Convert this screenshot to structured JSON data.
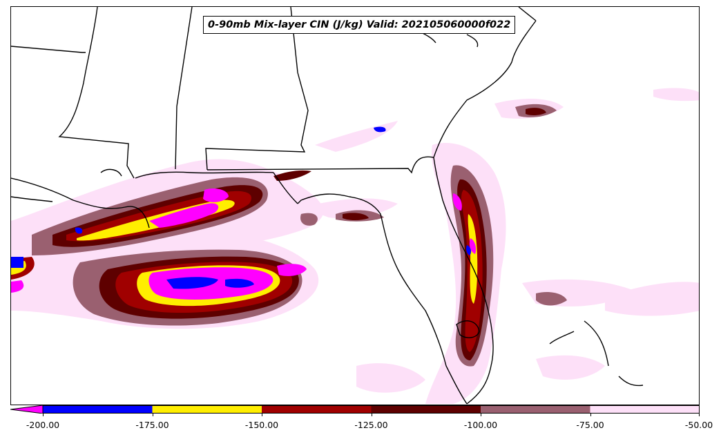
{
  "title": "0-90mb Mix-layer CIN (J/kg) Valid: 202105060000f022",
  "colorbar": {
    "ticks": [
      "-200.00",
      "-175.00",
      "-150.00",
      "-125.00",
      "-100.00",
      "-75.00",
      "-50.00"
    ],
    "under_color": "#ff00ff",
    "colors": [
      "#0000ff",
      "#ffee00",
      "#a00000",
      "#5e0000",
      "#9a6070",
      "#fde0f8"
    ]
  },
  "colors": {
    "land_outline": "#000000",
    "magenta": "#ff00ff",
    "blue": "#0000ff",
    "yellow": "#ffee00",
    "dark_red": "#a00000",
    "maroon": "#5e0000",
    "mauve": "#9a6070",
    "light_pink": "#fde0f8"
  }
}
